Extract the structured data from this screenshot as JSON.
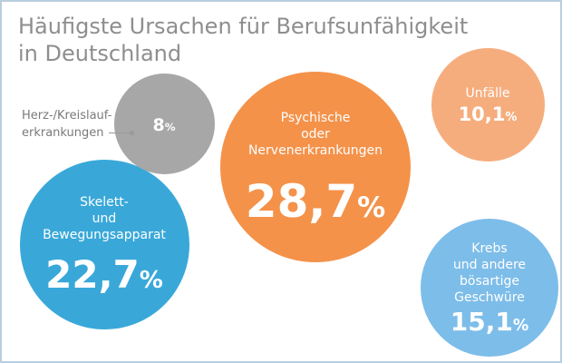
{
  "chart_data": {
    "type": "bubble",
    "title_lines": [
      "Häufigste Ursachen für Berufsunfähigkeit",
      "in Deutschland"
    ],
    "unit": "%",
    "series": [
      {
        "name": "Psychische\noder\nNervenerkrankungen",
        "value": 28.7,
        "display": "28,7",
        "color": "#f4924a"
      },
      {
        "name": "Skelett-\nund\nBewegungsapparat",
        "value": 22.7,
        "display": "22,7",
        "color": "#39a8d9"
      },
      {
        "name": "Krebs\nund andere\nbösartige\nGeschwüre",
        "value": 15.1,
        "display": "15,1",
        "color": "#7dbde9"
      },
      {
        "name": "Unfälle",
        "value": 10.1,
        "display": "10,1",
        "color": "#f6ad7d"
      },
      {
        "name": "Herz-/Kreislauf-\nerkrankungen",
        "value": 8,
        "display": "8",
        "color": "#a7a7a7"
      }
    ]
  }
}
